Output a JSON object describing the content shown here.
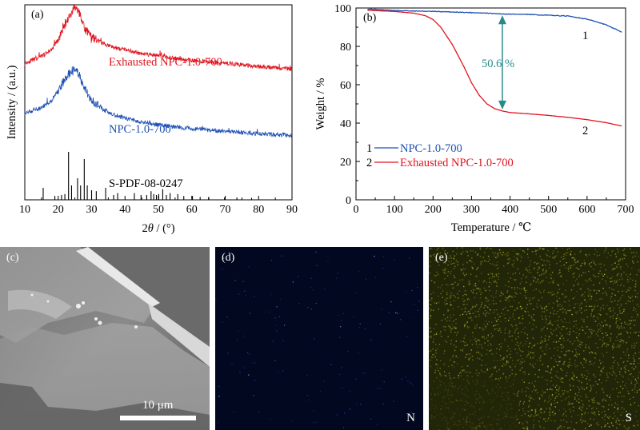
{
  "chart_data": [
    {
      "panel": "(a)",
      "type": "line",
      "xlabel_pre": "2",
      "xlabel_var": "θ",
      "xlabel_post": " / (°)",
      "ylabel": "Intensity / (a.u.)",
      "xlim": [
        10,
        90
      ],
      "xticks": [
        "10",
        "20",
        "30",
        "40",
        "50",
        "60",
        "70",
        "80",
        "90"
      ],
      "series": [
        {
          "name": "Exhausted NPC-1.0-700",
          "color": "#e0141e",
          "x": [
            10,
            15,
            18,
            20,
            22,
            24,
            25,
            26,
            27,
            28,
            30,
            33,
            36,
            40,
            45,
            50,
            55,
            60,
            70,
            80,
            90
          ],
          "y": [
            0.7,
            0.735,
            0.77,
            0.82,
            0.9,
            0.96,
            0.985,
            0.97,
            0.93,
            0.88,
            0.835,
            0.805,
            0.785,
            0.77,
            0.75,
            0.74,
            0.725,
            0.715,
            0.7,
            0.685,
            0.67
          ]
        },
        {
          "name": "NPC-1.0-700",
          "color": "#1e50b4",
          "x": [
            10,
            15,
            18,
            20,
            22,
            24,
            25,
            26,
            27,
            28,
            30,
            33,
            36,
            40,
            45,
            50,
            55,
            60,
            70,
            80,
            90
          ],
          "y": [
            0.445,
            0.47,
            0.51,
            0.56,
            0.62,
            0.66,
            0.665,
            0.65,
            0.61,
            0.57,
            0.51,
            0.47,
            0.44,
            0.42,
            0.4,
            0.385,
            0.375,
            0.365,
            0.35,
            0.34,
            0.33
          ]
        }
      ],
      "reference": {
        "name": "S-PDF-08-0247",
        "positions": [
          15.5,
          19.0,
          21.0,
          22.0,
          23.1,
          24.0,
          25.8,
          26.7,
          27.8,
          28.7,
          30.0,
          31.4,
          34.2,
          36.6,
          37.8,
          42.8,
          44.8,
          46.5,
          47.8,
          48.6,
          49.4,
          50.1,
          51.3,
          52.4,
          53.5,
          55.8,
          57.6,
          60.2,
          62.5,
          65.1,
          69.8,
          73.5,
          77.9
        ],
        "heights": [
          0.25,
          0.08,
          0.1,
          0.12,
          1.0,
          0.3,
          0.45,
          0.3,
          0.85,
          0.3,
          0.2,
          0.18,
          0.25,
          0.1,
          0.14,
          0.14,
          0.1,
          0.1,
          0.18,
          0.12,
          0.1,
          0.12,
          0.22,
          0.1,
          0.14,
          0.12,
          0.08,
          0.08,
          0.06,
          0.06,
          0.05,
          0.05,
          0.04
        ]
      }
    },
    {
      "panel": "(b)",
      "type": "line",
      "xlabel": "Temperature / ℃",
      "ylabel": "Weight / %",
      "xlim": [
        0,
        700
      ],
      "ylim": [
        0,
        100
      ],
      "xticks": [
        "0",
        "100",
        "200",
        "300",
        "400",
        "500",
        "600",
        "700"
      ],
      "yticks": [
        "0",
        "20",
        "40",
        "60",
        "80",
        "100"
      ],
      "series": [
        {
          "name": "NPC-1.0-700",
          "number": "1",
          "color": "#1e50b4",
          "x": [
            30,
            100,
            200,
            300,
            350,
            380,
            450,
            550,
            600,
            650,
            690
          ],
          "y": [
            99.5,
            98.7,
            98.2,
            97.6,
            97.2,
            96.9,
            96.6,
            95.8,
            94.2,
            91.2,
            87.5
          ]
        },
        {
          "name": "Exhausted NPC-1.0-700",
          "number": "2",
          "color": "#e0141e",
          "x": [
            30,
            100,
            150,
            180,
            200,
            220,
            250,
            280,
            300,
            320,
            340,
            360,
            380,
            400,
            450,
            500,
            550,
            600,
            650,
            690
          ],
          "y": [
            98.8,
            98.2,
            97.3,
            96.0,
            94.0,
            90.0,
            81.0,
            69.5,
            61.0,
            54.5,
            50.0,
            47.5,
            46.3,
            45.5,
            44.8,
            44.0,
            43.0,
            41.8,
            40.2,
            38.5
          ]
        }
      ],
      "annotation": {
        "text": "50.6 %",
        "x": 380,
        "y_top": 97.0,
        "y_bottom": 46.3,
        "color": "#2a8a8a"
      }
    }
  ],
  "images": {
    "c": {
      "label": "(c)",
      "scale_bar": "10 μm"
    },
    "d": {
      "label": "(d)",
      "element": "N"
    },
    "e": {
      "label": "(e)",
      "element": "S"
    }
  }
}
